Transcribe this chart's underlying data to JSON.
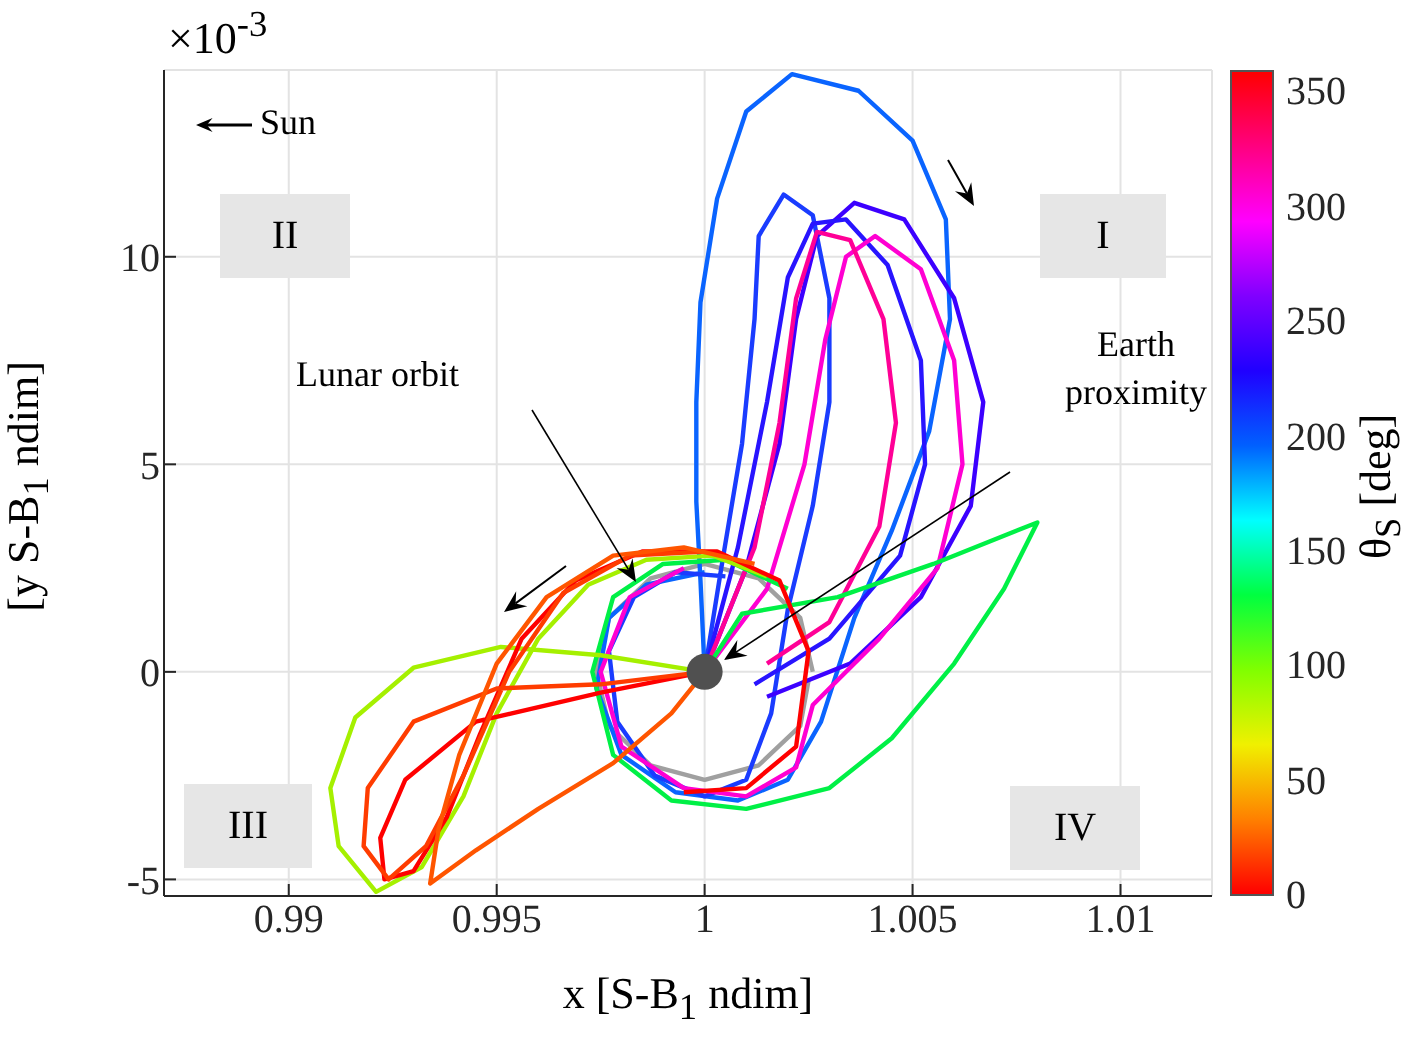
{
  "chart_data": {
    "type": "line",
    "xlabel": "x [S-B$_{1}$ ndim]",
    "ylabel": "[y S-B$_{1}$ ndim]",
    "clabel": "θ$_{S}$ [deg]",
    "xlim": [
      0.987,
      1.0122
    ],
    "xticks": [
      0.99,
      0.995,
      1,
      1.005,
      1.01
    ],
    "ylim": [
      -5.4,
      14.5
    ],
    "yticks": [
      -5,
      0,
      5,
      10
    ],
    "clim": [
      0,
      360
    ],
    "cticks": [
      0,
      50,
      100,
      150,
      200,
      250,
      300,
      350
    ],
    "grid": true,
    "line_style": "solid",
    "annotations": [
      "×10$^{-3}$",
      "Sun",
      "I",
      "II",
      "III",
      "IV",
      "Lunar orbit",
      "Earth proximity"
    ],
    "series": [
      {
        "color": "#a0a0a0",
        "x": [
          1.0026,
          1.0023,
          1.0013,
          1.0,
          0.9987,
          0.9977,
          0.9974,
          0.9977,
          0.9987,
          1.0,
          1.0013,
          1.0023,
          1.0025
        ],
        "values": [
          0,
          1.3,
          2.25,
          2.6,
          2.25,
          1.3,
          0,
          -1.3,
          -2.25,
          -2.6,
          -2.25,
          -1.3,
          -0.2
        ]
      },
      {
        "color": "#0a64ff",
        "x": [
          1.0,
          0.9999,
          0.9998,
          0.9998,
          0.9999,
          1.0003,
          1.001,
          1.0021,
          1.0037,
          1.005,
          1.0058,
          1.0059,
          1.0054,
          1.0045,
          1.0036,
          1.0028,
          1.002,
          1.0008,
          0.9993,
          0.998,
          0.9974,
          0.9977,
          0.9986,
          1.0
        ],
        "values": [
          0,
          2.2,
          4.1,
          6.5,
          8.9,
          11.4,
          13.5,
          14.4,
          14.0,
          12.8,
          10.9,
          8.5,
          5.8,
          3.4,
          1.3,
          -1.2,
          -2.6,
          -3.1,
          -2.9,
          -2.0,
          -0.4,
          1.3,
          2.1,
          2.4
        ]
      },
      {
        "color": "#1a3cff",
        "x": [
          1.0,
          1.0004,
          1.0009,
          1.0012,
          1.0013,
          1.0019,
          1.0026,
          1.003,
          1.003,
          1.0026,
          1.002,
          1.0016,
          1.001,
          1.0,
          0.9988,
          0.9979,
          0.9977,
          0.9983,
          0.9993,
          1.0005
        ],
        "values": [
          0,
          2.5,
          5.5,
          8.5,
          10.5,
          11.5,
          11.0,
          9.0,
          6.5,
          4.0,
          1.5,
          -1.0,
          -2.6,
          -3.0,
          -2.5,
          -1.2,
          0.5,
          1.8,
          2.4,
          2.3
        ]
      },
      {
        "color": "#3c00ff",
        "x": [
          1.0,
          1.001,
          1.0018,
          1.0022,
          1.0027,
          1.0036,
          1.0048,
          1.006,
          1.0067,
          1.0064,
          1.0052,
          1.0035,
          1.0015
        ],
        "values": [
          0,
          2.5,
          5.5,
          8.5,
          10.5,
          11.3,
          10.9,
          9.0,
          6.5,
          4.0,
          1.8,
          0.2,
          -0.6
        ]
      },
      {
        "color": "#2814ff",
        "x": [
          1.0,
          1.0008,
          1.0015,
          1.002,
          1.0026,
          1.0034,
          1.0044,
          1.0052,
          1.0053,
          1.0047,
          1.003,
          1.0012
        ],
        "values": [
          0,
          3.0,
          6.5,
          9.5,
          10.8,
          10.9,
          9.8,
          7.5,
          5.0,
          2.8,
          0.8,
          -0.3
        ]
      },
      {
        "color": "#ff00d2",
        "x": [
          1.0,
          1.0015,
          1.0024,
          1.0029,
          1.0034,
          1.0041,
          1.0052,
          1.006,
          1.0062,
          1.0056,
          1.0042,
          1.0026,
          1.0022,
          1.001,
          0.9995,
          0.998,
          0.9975,
          0.9982,
          0.9995
        ],
        "values": [
          0,
          2.0,
          5.0,
          8.0,
          10.0,
          10.5,
          9.7,
          7.5,
          5.0,
          2.5,
          0.8,
          -0.8,
          -2.3,
          -3.0,
          -2.8,
          -1.8,
          0,
          1.8,
          2.5
        ]
      },
      {
        "color": "#ff0096",
        "x": [
          1.0,
          1.0012,
          1.0018,
          1.0022,
          1.0027,
          1.0035,
          1.0043,
          1.0046,
          1.0042,
          1.003,
          1.0015
        ],
        "values": [
          0,
          3.0,
          6.0,
          9.0,
          10.6,
          10.4,
          8.5,
          6.0,
          3.5,
          1.2,
          0.2
        ]
      },
      {
        "color": "#00f046",
        "x": [
          1.0,
          1.0009,
          1.0032,
          1.0055,
          1.008,
          1.0072,
          1.006,
          1.0045,
          1.003,
          1.001,
          0.9992,
          0.9978,
          0.9973,
          0.9978,
          0.999,
          1.0005,
          1.002
        ],
        "values": [
          0,
          1.4,
          1.8,
          2.6,
          3.6,
          2.0,
          0.2,
          -1.6,
          -2.8,
          -3.3,
          -3.1,
          -2.0,
          0,
          1.8,
          2.6,
          2.7,
          2.0
        ]
      },
      {
        "color": "#a5f000",
        "x": [
          1.0,
          0.9975,
          0.9951,
          0.993,
          0.9916,
          0.991,
          0.9912,
          0.9921,
          0.9932,
          0.9942,
          0.995,
          0.996,
          0.9972,
          0.9986,
          1.0002,
          1.0015
        ],
        "values": [
          0,
          0.4,
          0.6,
          0.1,
          -1.1,
          -2.8,
          -4.2,
          -5.3,
          -4.7,
          -3.0,
          -1.0,
          0.8,
          2.1,
          2.7,
          2.8,
          2.3
        ]
      },
      {
        "color": "#ff0000",
        "x": [
          1.0,
          0.9975,
          0.9945,
          0.9928,
          0.9922,
          0.9923,
          0.993,
          0.9938,
          0.9946,
          0.9956,
          0.9969,
          0.9985,
          1.0003,
          1.0018,
          1.0025,
          1.0022,
          1.001,
          0.9995
        ],
        "values": [
          0,
          -0.5,
          -1.2,
          -2.6,
          -4.0,
          -5.0,
          -4.8,
          -3.5,
          -1.5,
          0.8,
          2.2,
          2.9,
          2.9,
          2.2,
          0.5,
          -1.8,
          -2.8,
          -2.9
        ]
      },
      {
        "color": "#ff3c00",
        "x": [
          1.0,
          0.9975,
          0.995,
          0.993,
          0.9919,
          0.9918,
          0.9924,
          0.9933,
          0.9942,
          0.9953,
          0.9966,
          0.9982,
          1.0
        ],
        "values": [
          0,
          -0.3,
          -0.4,
          -1.2,
          -2.8,
          -4.2,
          -5.0,
          -4.2,
          -2.5,
          0,
          1.9,
          2.8,
          2.9
        ]
      },
      {
        "color": "#ff5500",
        "x": [
          1.0,
          0.9992,
          0.9978,
          0.996,
          0.9945,
          0.9934,
          0.9936,
          0.9941,
          0.995,
          0.9962,
          0.9978,
          0.9995,
          1.0012
        ],
        "values": [
          0,
          -1.0,
          -2.2,
          -3.3,
          -4.3,
          -5.1,
          -3.8,
          -2.0,
          0.2,
          1.8,
          2.8,
          3.0,
          2.6
        ]
      },
      {
        "type": "scatter",
        "color": "#505050",
        "marker": "circle",
        "x": [
          1.0
        ],
        "values": [
          0
        ]
      }
    ]
  }
}
